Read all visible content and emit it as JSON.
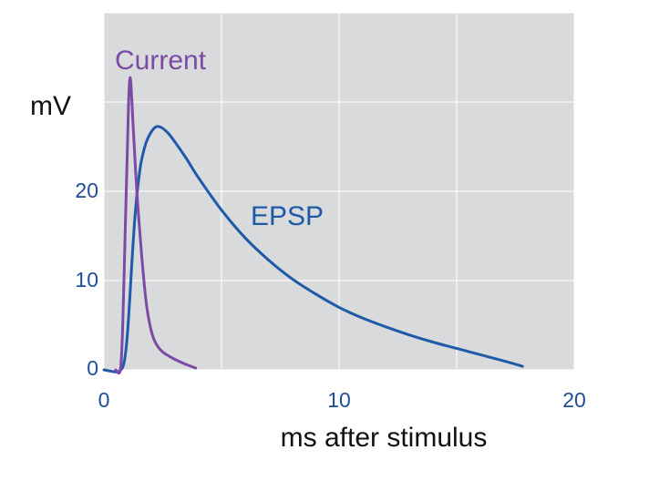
{
  "chart_data": {
    "type": "line",
    "title": "",
    "xlabel": "ms after stimulus",
    "ylabel": "mV",
    "xlim": [
      0,
      20
    ],
    "ylim": [
      0,
      40
    ],
    "x_ticks": [
      0,
      10,
      20
    ],
    "y_ticks": [
      0,
      10,
      20
    ],
    "y_gridlines": [
      0,
      10,
      20,
      30,
      40
    ],
    "x_gridlines": [
      0,
      5,
      10,
      15,
      20
    ],
    "grid": true,
    "plot_background": "#d9dadc",
    "grid_color": "#ffffff",
    "series": [
      {
        "name": "EPSP",
        "color": "#1e5aa8",
        "points": [
          [
            0,
            0
          ],
          [
            0.4,
            -0.2
          ],
          [
            0.6,
            -0.2
          ],
          [
            0.8,
            0.3
          ],
          [
            0.9,
            1.5
          ],
          [
            1.0,
            4
          ],
          [
            1.1,
            8
          ],
          [
            1.2,
            12.5
          ],
          [
            1.3,
            16.5
          ],
          [
            1.4,
            19.5
          ],
          [
            1.5,
            21.8
          ],
          [
            1.6,
            23.5
          ],
          [
            1.8,
            25.5
          ],
          [
            2.0,
            26.6
          ],
          [
            2.2,
            27.2
          ],
          [
            2.4,
            27.2
          ],
          [
            2.7,
            26.6
          ],
          [
            3.0,
            25.6
          ],
          [
            3.5,
            23.7
          ],
          [
            4.0,
            21.6
          ],
          [
            5.0,
            17.9
          ],
          [
            6.0,
            14.8
          ],
          [
            7.0,
            12.3
          ],
          [
            8.0,
            10.2
          ],
          [
            9.0,
            8.5
          ],
          [
            10.0,
            7.0
          ],
          [
            11.0,
            5.8
          ],
          [
            12.0,
            4.8
          ],
          [
            13.0,
            3.9
          ],
          [
            14.0,
            3.1
          ],
          [
            15.0,
            2.4
          ],
          [
            16.0,
            1.7
          ],
          [
            17.0,
            1.0
          ],
          [
            17.8,
            0.4
          ]
        ]
      },
      {
        "name": "Current",
        "color": "#7b4aa6",
        "points": [
          [
            0.5,
            0
          ],
          [
            0.7,
            0
          ],
          [
            0.8,
            5
          ],
          [
            0.9,
            15
          ],
          [
            1.0,
            25
          ],
          [
            1.05,
            30
          ],
          [
            1.1,
            32.5
          ],
          [
            1.15,
            32
          ],
          [
            1.25,
            27
          ],
          [
            1.4,
            20
          ],
          [
            1.6,
            13
          ],
          [
            1.8,
            7.5
          ],
          [
            2.0,
            4.5
          ],
          [
            2.2,
            3
          ],
          [
            2.5,
            2
          ],
          [
            3.0,
            1.2
          ],
          [
            3.5,
            0.6
          ],
          [
            3.9,
            0.2
          ]
        ]
      }
    ],
    "annotations": [
      {
        "text": "Current",
        "color": "#7b4aa6"
      },
      {
        "text": "EPSP",
        "color": "#1e5aa8"
      }
    ]
  }
}
